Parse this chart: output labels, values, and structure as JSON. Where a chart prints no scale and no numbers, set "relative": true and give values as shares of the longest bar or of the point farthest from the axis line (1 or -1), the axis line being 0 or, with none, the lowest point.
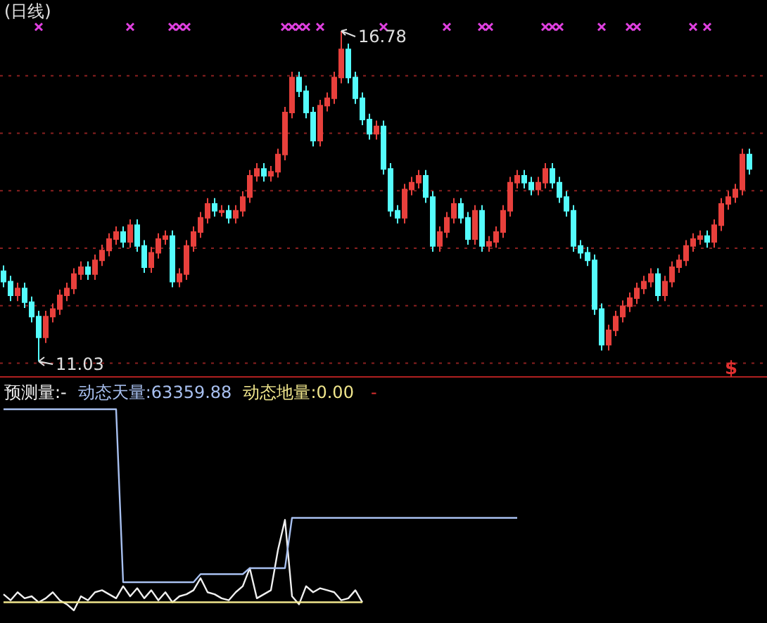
{
  "chart_data": [
    {
      "type": "candlestick",
      "title": "(日线)",
      "categories": [
        null,
        null,
        null,
        null,
        null,
        null,
        null,
        null,
        null,
        null,
        null,
        null,
        null,
        null,
        null,
        null,
        null,
        null,
        null,
        null,
        null,
        null,
        null,
        null,
        null,
        null,
        null,
        null,
        null,
        null,
        null,
        null,
        null,
        null,
        null,
        null,
        null,
        null,
        null,
        null,
        null,
        null,
        null,
        null,
        null,
        null,
        null,
        null,
        null,
        null,
        null,
        null,
        null,
        null,
        null,
        null,
        null,
        null,
        null,
        null,
        null,
        null,
        null,
        null,
        null,
        null,
        null,
        null,
        null,
        null,
        null,
        null,
        null,
        null,
        null,
        null,
        null,
        null,
        null,
        null,
        null,
        null,
        null,
        null,
        null,
        null,
        null,
        null,
        null,
        null,
        null,
        null,
        null,
        null,
        null,
        null,
        null,
        null,
        null,
        null,
        null,
        null,
        null,
        null,
        null,
        null,
        null
      ],
      "ohlc": [
        [
          12.6,
          12.7,
          12.32,
          12.42
        ],
        [
          12.42,
          12.52,
          12.08,
          12.18
        ],
        [
          12.18,
          12.4,
          12.08,
          12.3
        ],
        [
          12.3,
          12.4,
          11.96,
          12.06
        ],
        [
          12.06,
          12.16,
          11.71,
          11.81
        ],
        [
          11.81,
          11.91,
          11.03,
          11.45
        ],
        [
          11.45,
          11.91,
          11.35,
          11.81
        ],
        [
          11.81,
          12.04,
          11.71,
          11.94
        ],
        [
          11.94,
          12.28,
          11.84,
          12.18
        ],
        [
          12.18,
          12.4,
          12.08,
          12.3
        ],
        [
          12.3,
          12.65,
          12.2,
          12.55
        ],
        [
          12.55,
          12.77,
          12.45,
          12.67
        ],
        [
          12.67,
          12.77,
          12.45,
          12.55
        ],
        [
          12.55,
          12.89,
          12.45,
          12.79
        ],
        [
          12.79,
          13.06,
          12.69,
          12.96
        ],
        [
          12.96,
          13.26,
          12.86,
          13.16
        ],
        [
          13.16,
          13.38,
          13.06,
          13.28
        ],
        [
          13.28,
          13.38,
          13.01,
          13.11
        ],
        [
          13.11,
          13.5,
          13.01,
          13.4
        ],
        [
          13.4,
          13.5,
          12.94,
          13.04
        ],
        [
          13.04,
          13.14,
          12.57,
          12.67
        ],
        [
          12.67,
          13.02,
          12.57,
          12.92
        ],
        [
          12.92,
          13.26,
          12.82,
          13.16
        ],
        [
          13.16,
          13.31,
          13.06,
          13.21
        ],
        [
          13.21,
          13.31,
          12.32,
          12.42
        ],
        [
          12.42,
          12.65,
          12.32,
          12.55
        ],
        [
          12.55,
          13.14,
          12.45,
          13.04
        ],
        [
          13.04,
          13.38,
          12.94,
          13.28
        ],
        [
          13.28,
          13.63,
          13.18,
          13.53
        ],
        [
          13.53,
          13.87,
          13.43,
          13.77
        ],
        [
          13.77,
          13.87,
          13.55,
          13.65
        ],
        [
          13.65,
          13.75,
          13.55,
          13.65
        ],
        [
          13.65,
          13.75,
          13.43,
          13.53
        ],
        [
          13.53,
          13.75,
          13.43,
          13.65
        ],
        [
          13.65,
          13.99,
          13.55,
          13.89
        ],
        [
          13.89,
          14.36,
          13.79,
          14.26
        ],
        [
          14.26,
          14.48,
          14.16,
          14.38
        ],
        [
          14.38,
          14.48,
          14.16,
          14.26
        ],
        [
          14.26,
          14.43,
          14.16,
          14.33
        ],
        [
          14.33,
          14.73,
          14.23,
          14.63
        ],
        [
          14.63,
          15.46,
          14.53,
          15.36
        ],
        [
          15.36,
          16.07,
          15.26,
          15.97
        ],
        [
          15.97,
          16.07,
          15.63,
          15.73
        ],
        [
          15.73,
          15.83,
          15.26,
          15.36
        ],
        [
          15.36,
          15.46,
          14.77,
          14.87
        ],
        [
          14.87,
          15.58,
          14.77,
          15.48
        ],
        [
          15.48,
          15.71,
          15.38,
          15.61
        ],
        [
          15.61,
          16.07,
          15.51,
          15.97
        ],
        [
          15.97,
          16.78,
          15.87,
          16.46
        ],
        [
          16.46,
          16.56,
          15.87,
          15.97
        ],
        [
          15.97,
          16.07,
          15.51,
          15.61
        ],
        [
          15.61,
          15.71,
          15.14,
          15.24
        ],
        [
          15.24,
          15.34,
          14.89,
          14.99
        ],
        [
          14.99,
          15.22,
          14.89,
          15.12
        ],
        [
          15.12,
          15.22,
          14.28,
          14.38
        ],
        [
          14.38,
          14.48,
          13.55,
          13.65
        ],
        [
          13.65,
          13.75,
          13.43,
          13.53
        ],
        [
          13.53,
          14.12,
          13.43,
          14.02
        ],
        [
          14.02,
          14.24,
          13.92,
          14.14
        ],
        [
          14.14,
          14.36,
          14.04,
          14.26
        ],
        [
          14.26,
          14.36,
          13.79,
          13.89
        ],
        [
          13.89,
          13.99,
          12.94,
          13.04
        ],
        [
          13.04,
          13.38,
          12.94,
          13.28
        ],
        [
          13.28,
          13.63,
          13.18,
          13.53
        ],
        [
          13.53,
          13.87,
          13.43,
          13.77
        ],
        [
          13.77,
          13.87,
          13.43,
          13.53
        ],
        [
          13.53,
          13.63,
          13.06,
          13.16
        ],
        [
          13.16,
          13.75,
          13.06,
          13.65
        ],
        [
          13.65,
          13.75,
          12.94,
          13.04
        ],
        [
          13.04,
          13.21,
          12.94,
          13.11
        ],
        [
          13.11,
          13.38,
          13.01,
          13.28
        ],
        [
          13.28,
          13.75,
          13.18,
          13.65
        ],
        [
          13.65,
          14.24,
          13.55,
          14.14
        ],
        [
          14.14,
          14.36,
          14.04,
          14.26
        ],
        [
          14.26,
          14.36,
          14.04,
          14.14
        ],
        [
          14.14,
          14.24,
          13.92,
          14.02
        ],
        [
          14.02,
          14.24,
          13.92,
          14.14
        ],
        [
          14.14,
          14.48,
          14.04,
          14.38
        ],
        [
          14.38,
          14.48,
          14.04,
          14.14
        ],
        [
          14.14,
          14.24,
          13.79,
          13.89
        ],
        [
          13.89,
          13.99,
          13.55,
          13.65
        ],
        [
          13.65,
          13.75,
          12.94,
          13.04
        ],
        [
          13.04,
          13.14,
          12.82,
          12.92
        ],
        [
          12.92,
          13.02,
          12.69,
          12.79
        ],
        [
          12.79,
          12.89,
          11.84,
          11.94
        ],
        [
          11.94,
          12.04,
          11.22,
          11.32
        ],
        [
          11.32,
          11.67,
          11.22,
          11.57
        ],
        [
          11.57,
          11.91,
          11.47,
          11.81
        ],
        [
          11.81,
          12.09,
          11.71,
          11.99
        ],
        [
          11.99,
          12.23,
          11.89,
          12.13
        ],
        [
          12.13,
          12.4,
          12.03,
          12.3
        ],
        [
          12.3,
          12.52,
          12.2,
          12.42
        ],
        [
          12.42,
          12.65,
          12.32,
          12.55
        ],
        [
          12.55,
          12.65,
          12.08,
          12.18
        ],
        [
          12.18,
          12.52,
          12.08,
          12.42
        ],
        [
          12.42,
          12.77,
          12.32,
          12.67
        ],
        [
          12.67,
          12.89,
          12.57,
          12.79
        ],
        [
          12.79,
          13.14,
          12.69,
          13.04
        ],
        [
          13.04,
          13.26,
          12.94,
          13.16
        ],
        [
          13.16,
          13.31,
          13.06,
          13.21
        ],
        [
          13.21,
          13.31,
          13.01,
          13.11
        ],
        [
          13.11,
          13.5,
          13.01,
          13.4
        ],
        [
          13.4,
          13.87,
          13.3,
          13.77
        ],
        [
          13.77,
          13.99,
          13.67,
          13.89
        ],
        [
          13.89,
          14.12,
          13.79,
          14.02
        ],
        [
          14.02,
          14.73,
          13.92,
          14.63
        ],
        [
          14.63,
          14.73,
          14.28,
          14.38
        ]
      ],
      "colors": [
        "#54fcfc",
        "#54fcfc",
        "#e8403c",
        "#54fcfc",
        "#54fcfc",
        "#54fcfc",
        "#e8403c",
        "#e8403c",
        "#e8403c",
        "#e8403c",
        "#e8403c",
        "#e8403c",
        "#54fcfc",
        "#e8403c",
        "#e8403c",
        "#e8403c",
        "#e8403c",
        "#54fcfc",
        "#e8403c",
        "#54fcfc",
        "#54fcfc",
        "#e8403c",
        "#e8403c",
        "#e8403c",
        "#54fcfc",
        "#e8403c",
        "#e8403c",
        "#e8403c",
        "#e8403c",
        "#e8403c",
        "#54fcfc",
        "#e8403c",
        "#54fcfc",
        "#e8403c",
        "#e8403c",
        "#e8403c",
        "#e8403c",
        "#54fcfc",
        "#e8403c",
        "#e8403c",
        "#e8403c",
        "#e8403c",
        "#54fcfc",
        "#54fcfc",
        "#54fcfc",
        "#e8403c",
        "#e8403c",
        "#e8403c",
        "#e8403c",
        "#54fcfc",
        "#54fcfc",
        "#54fcfc",
        "#54fcfc",
        "#e8403c",
        "#54fcfc",
        "#54fcfc",
        "#54fcfc",
        "#e8403c",
        "#e8403c",
        "#e8403c",
        "#54fcfc",
        "#54fcfc",
        "#e8403c",
        "#e8403c",
        "#e8403c",
        "#54fcfc",
        "#54fcfc",
        "#e8403c",
        "#54fcfc",
        "#e8403c",
        "#e8403c",
        "#e8403c",
        "#e8403c",
        "#e8403c",
        "#54fcfc",
        "#54fcfc",
        "#e8403c",
        "#e8403c",
        "#54fcfc",
        "#54fcfc",
        "#54fcfc",
        "#54fcfc",
        "#54fcfc",
        "#54fcfc",
        "#54fcfc",
        "#54fcfc",
        "#e8403c",
        "#e8403c",
        "#e8403c",
        "#e8403c",
        "#e8403c",
        "#e8403c",
        "#e8403c",
        "#54fcfc",
        "#e8403c",
        "#e8403c",
        "#e8403c",
        "#e8403c",
        "#e8403c",
        "#e8403c",
        "#54fcfc",
        "#e8403c",
        "#e8403c",
        "#e8403c",
        "#e8403c",
        "#e8403c",
        "#54fcfc"
      ],
      "series": [
        {
          "type": "scatter",
          "color": "#e040e0",
          "marker": "cross",
          "values": [
            null,
            null,
            null,
            null,
            null,
            16.85,
            null,
            null,
            null,
            null,
            null,
            null,
            null,
            null,
            null,
            null,
            null,
            null,
            16.85,
            null,
            null,
            null,
            null,
            null,
            16.85,
            16.85,
            16.85,
            null,
            null,
            null,
            null,
            null,
            null,
            null,
            null,
            null,
            null,
            null,
            null,
            null,
            16.85,
            16.85,
            16.85,
            16.85,
            null,
            16.85,
            null,
            null,
            null,
            null,
            null,
            null,
            null,
            null,
            16.85,
            null,
            null,
            null,
            null,
            null,
            null,
            null,
            null,
            16.85,
            null,
            null,
            null,
            null,
            16.85,
            16.85,
            null,
            null,
            null,
            null,
            null,
            null,
            null,
            16.85,
            16.85,
            16.85,
            null,
            null,
            null,
            null,
            null,
            16.85,
            null,
            null,
            null,
            16.85,
            16.85,
            null,
            null,
            null,
            null,
            null,
            null,
            null,
            16.85,
            null,
            16.85,
            null,
            null,
            null,
            null,
            null,
            null
          ]
        }
      ],
      "yticks": [
        {
          "value": 11,
          "label": null
        },
        {
          "value": 12,
          "label": null
        },
        {
          "value": 13,
          "label": null
        },
        {
          "value": 14,
          "label": null
        },
        {
          "value": 15,
          "label": null
        },
        {
          "value": 16,
          "label": null
        }
      ],
      "grid": "y",
      "annotations": [
        "16.78",
        "11.03",
        "$"
      ]
    },
    {
      "type": "line",
      "relative": true,
      "legend": "top left",
      "categories": [
        null,
        null,
        null,
        null,
        null,
        null,
        null,
        null,
        null,
        null,
        null,
        null,
        null,
        null,
        null,
        null,
        null,
        null,
        null,
        null,
        null,
        null,
        null,
        null,
        null,
        null,
        null,
        null,
        null,
        null,
        null,
        null,
        null,
        null,
        null,
        null,
        null,
        null,
        null,
        null,
        null,
        null,
        null,
        null,
        null,
        null,
        null,
        null,
        null,
        null,
        null,
        null,
        null,
        null,
        null,
        null,
        null,
        null,
        null,
        null,
        null,
        null,
        null,
        null,
        null,
        null,
        null,
        null,
        null,
        null,
        null,
        null,
        null,
        null,
        null,
        null,
        null,
        null,
        null,
        null,
        null,
        null,
        null,
        null,
        null,
        null,
        null,
        null,
        null,
        null,
        null,
        null,
        null,
        null,
        null,
        null,
        null,
        null,
        null,
        null,
        null,
        null,
        null,
        null,
        null,
        null,
        null
      ],
      "series": [
        {
          "name": "预测量:-",
          "color": "#f0f0f0",
          "values": [
            0.08,
            0.05,
            0.09,
            0.06,
            0.07,
            0.04,
            0.06,
            0.09,
            0.05,
            0.03,
            0.0,
            0.07,
            0.05,
            0.09,
            0.1,
            0.08,
            0.06,
            0.12,
            0.07,
            0.11,
            0.06,
            0.1,
            0.05,
            0.09,
            0.04,
            0.07,
            0.08,
            0.1,
            0.16,
            0.09,
            0.08,
            0.06,
            0.05,
            0.09,
            0.12,
            0.21,
            0.06,
            0.08,
            0.1,
            0.3,
            0.45,
            0.07,
            0.03,
            0.12,
            0.09,
            0.11,
            0.1,
            0.09,
            0.05,
            0.06,
            0.1,
            0.04,
            null,
            null,
            null,
            null,
            null,
            null,
            null,
            null,
            null,
            null,
            null,
            null,
            null,
            null,
            null,
            null,
            null,
            null,
            null,
            null,
            null,
            null,
            null,
            null,
            null,
            null,
            null,
            null,
            null,
            null,
            null,
            null,
            null,
            null,
            null,
            null,
            null,
            null,
            null,
            null,
            null,
            null,
            null,
            null,
            null,
            null,
            null,
            null,
            null,
            null,
            null,
            null,
            null,
            null,
            null
          ]
        },
        {
          "name": "动态天量:63359.88",
          "color": "#a8c0f0",
          "values": [
            1.0,
            1.0,
            1.0,
            1.0,
            1.0,
            1.0,
            1.0,
            1.0,
            1.0,
            1.0,
            1.0,
            1.0,
            1.0,
            1.0,
            1.0,
            1.0,
            1.0,
            0.14,
            0.14,
            0.14,
            0.14,
            0.14,
            0.14,
            0.14,
            0.14,
            0.14,
            0.14,
            0.14,
            0.18,
            0.18,
            0.18,
            0.18,
            0.18,
            0.18,
            0.18,
            0.21,
            0.21,
            0.21,
            0.21,
            0.21,
            0.21,
            0.46,
            0.46,
            0.46,
            0.46,
            0.46,
            0.46,
            0.46,
            0.46,
            0.46,
            0.46,
            0.46,
            0.46,
            0.46,
            0.46,
            0.46,
            0.46,
            0.46,
            0.46,
            0.46,
            0.46,
            0.46,
            0.46,
            0.46,
            0.46,
            0.46,
            0.46,
            0.46,
            0.46,
            0.46,
            0.46,
            0.46,
            0.46,
            0.46,
            null,
            null,
            null,
            null,
            null,
            null,
            null,
            null,
            null,
            null,
            null,
            null,
            null,
            null,
            null,
            null,
            null,
            null,
            null,
            null,
            null,
            null,
            null,
            null,
            null,
            null,
            null,
            null,
            null,
            null,
            null,
            null,
            null
          ]
        },
        {
          "name": "动态地量:0.00",
          "color": "#f0e68c",
          "values": [
            0.04,
            0.04,
            0.04,
            0.04,
            0.04,
            0.04,
            0.04,
            0.04,
            0.04,
            0.04,
            0.04,
            0.04,
            0.04,
            0.04,
            0.04,
            0.04,
            0.04,
            0.04,
            0.04,
            0.04,
            0.04,
            0.04,
            0.04,
            0.04,
            0.04,
            0.04,
            0.04,
            0.04,
            0.04,
            0.04,
            0.04,
            0.04,
            0.04,
            0.04,
            0.04,
            0.04,
            0.04,
            0.04,
            0.04,
            0.04,
            0.04,
            0.04,
            0.04,
            0.04,
            0.04,
            0.04,
            0.04,
            0.04,
            0.04,
            0.04,
            0.04,
            0.04,
            null,
            null,
            null,
            null,
            null,
            null,
            null,
            null,
            null,
            null,
            null,
            null,
            null,
            null,
            null,
            null,
            null,
            null,
            null,
            null,
            null,
            null,
            null,
            null,
            null,
            null,
            null,
            null,
            null,
            null,
            null,
            null,
            null,
            null,
            null,
            null,
            null,
            null,
            null,
            null,
            null,
            null,
            null,
            null,
            null,
            null,
            null,
            null,
            null,
            null,
            null,
            null,
            null,
            null,
            null
          ]
        }
      ],
      "annotations": [
        "-"
      ]
    }
  ]
}
